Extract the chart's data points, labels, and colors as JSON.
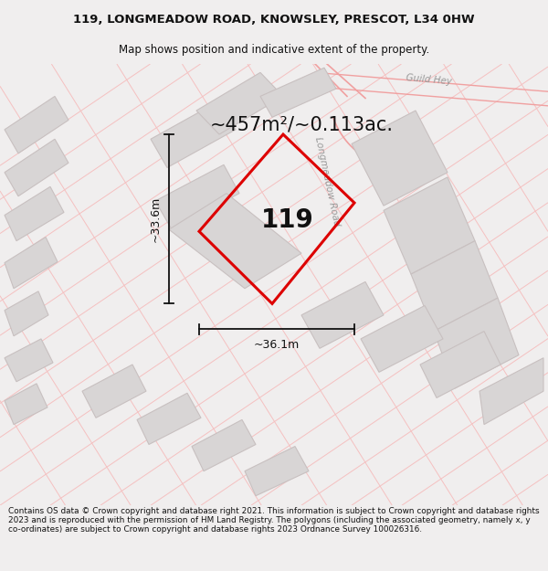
{
  "title_line1": "119, LONGMEADOW ROAD, KNOWSLEY, PRESCOT, L34 0HW",
  "title_line2": "Map shows position and indicative extent of the property.",
  "area_text": "~457m²/~0.113ac.",
  "property_number": "119",
  "dim_width": "~36.1m",
  "dim_height": "~33.6m",
  "footer_text": "Contains OS data © Crown copyright and database right 2021. This information is subject to Crown copyright and database rights 2023 and is reproduced with the permission of HM Land Registry. The polygons (including the associated geometry, namely x, y co-ordinates) are subject to Crown copyright and database rights 2023 Ordnance Survey 100026316.",
  "bg_color": "#f0eeee",
  "map_bg_color": "#ffffff",
  "road_line_color": "#f5c0c0",
  "road_label": "Longmeadow Road",
  "road_label2": "Guild Hey",
  "property_outline_color": "#dd0000",
  "building_fill_color": "#d8d5d5",
  "building_outline_color": "#c8c0c0",
  "road_curve_color": "#f0a0a0",
  "dim_line_color": "#111111",
  "text_color": "#111111",
  "area_fontsize": 15,
  "num_fontsize": 20,
  "dim_fontsize": 9
}
